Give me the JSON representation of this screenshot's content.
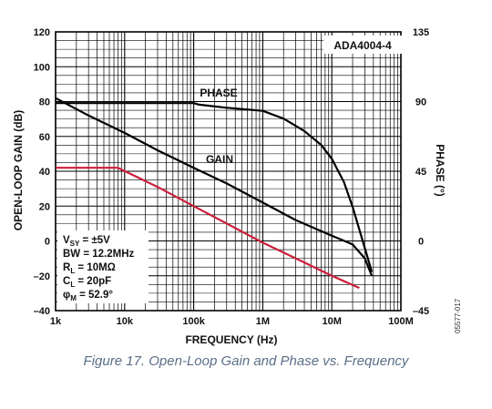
{
  "chart_data": {
    "type": "line",
    "title_box": "ADA4004-4",
    "xlabel": "FREQUENCY (Hz)",
    "ylabel_left": "OPEN-LOOP GAIN (dB)",
    "ylabel_right": "PHASE (°)",
    "x_scale": "log",
    "xlim": [
      1000,
      100000000
    ],
    "x_ticks": [
      "1k",
      "10k",
      "100k",
      "1M",
      "10M",
      "100M"
    ],
    "ylim_left": [
      -40,
      120
    ],
    "y_ticks_left": [
      "120",
      "100",
      "80",
      "60",
      "40",
      "20",
      "0",
      "–20",
      "–40"
    ],
    "ylim_right": [
      -45,
      135
    ],
    "y_ticks_right": [
      "135",
      "90",
      "45",
      "0",
      "–45"
    ],
    "grid": true,
    "series": [
      {
        "name": "GAIN",
        "color": "#000000",
        "axis": "left",
        "x": [
          1000,
          3000,
          10000,
          30000,
          100000,
          300000,
          1000000,
          3000000,
          10000000,
          20000000,
          30000000,
          38000000
        ],
        "y": [
          82,
          72,
          62,
          52,
          42,
          33,
          22,
          12,
          3,
          -2,
          -10,
          -20
        ]
      },
      {
        "name": "PHASE",
        "color": "#000000",
        "axis": "right",
        "x": [
          1000,
          10000,
          100000,
          120000,
          300000,
          1000000,
          2000000,
          4000000,
          7000000,
          10000000,
          15000000,
          20000000,
          28000000,
          38000000
        ],
        "y": [
          89,
          89,
          89,
          88,
          86,
          84,
          79,
          71,
          62,
          53,
          38,
          22,
          0,
          -20
        ]
      },
      {
        "color": "#cc1f3a",
        "axis": "left",
        "x": [
          1000,
          3000,
          8000,
          30000,
          100000,
          300000,
          1000000,
          3000000,
          10000000,
          25000000
        ],
        "y": [
          42,
          42,
          42,
          31,
          20,
          10,
          -1,
          -10,
          -20,
          -27
        ]
      }
    ],
    "annotations": [
      "PHASE",
      "GAIN"
    ],
    "conditions": [
      "V_SY = ±5V",
      "BW = 12.2MHz",
      "R_L = 10MΩ",
      "C_L = 20pF",
      "φ_M = 52.9°"
    ],
    "condition_parts": [
      {
        "a": "V",
        "sub": "SY",
        "b": " = ±5V"
      },
      {
        "a": "BW = 12.2MHz",
        "sub": "",
        "b": ""
      },
      {
        "a": "R",
        "sub": "L",
        "b": " = 10MΩ"
      },
      {
        "a": "C",
        "sub": "L",
        "b": " = 20pF"
      },
      {
        "a": "φ",
        "sub": "M",
        "b": " = 52.9°"
      }
    ]
  },
  "caption": "Figure 17. Open-Loop Gain and Phase vs. Frequency",
  "side_code": "05577-017"
}
